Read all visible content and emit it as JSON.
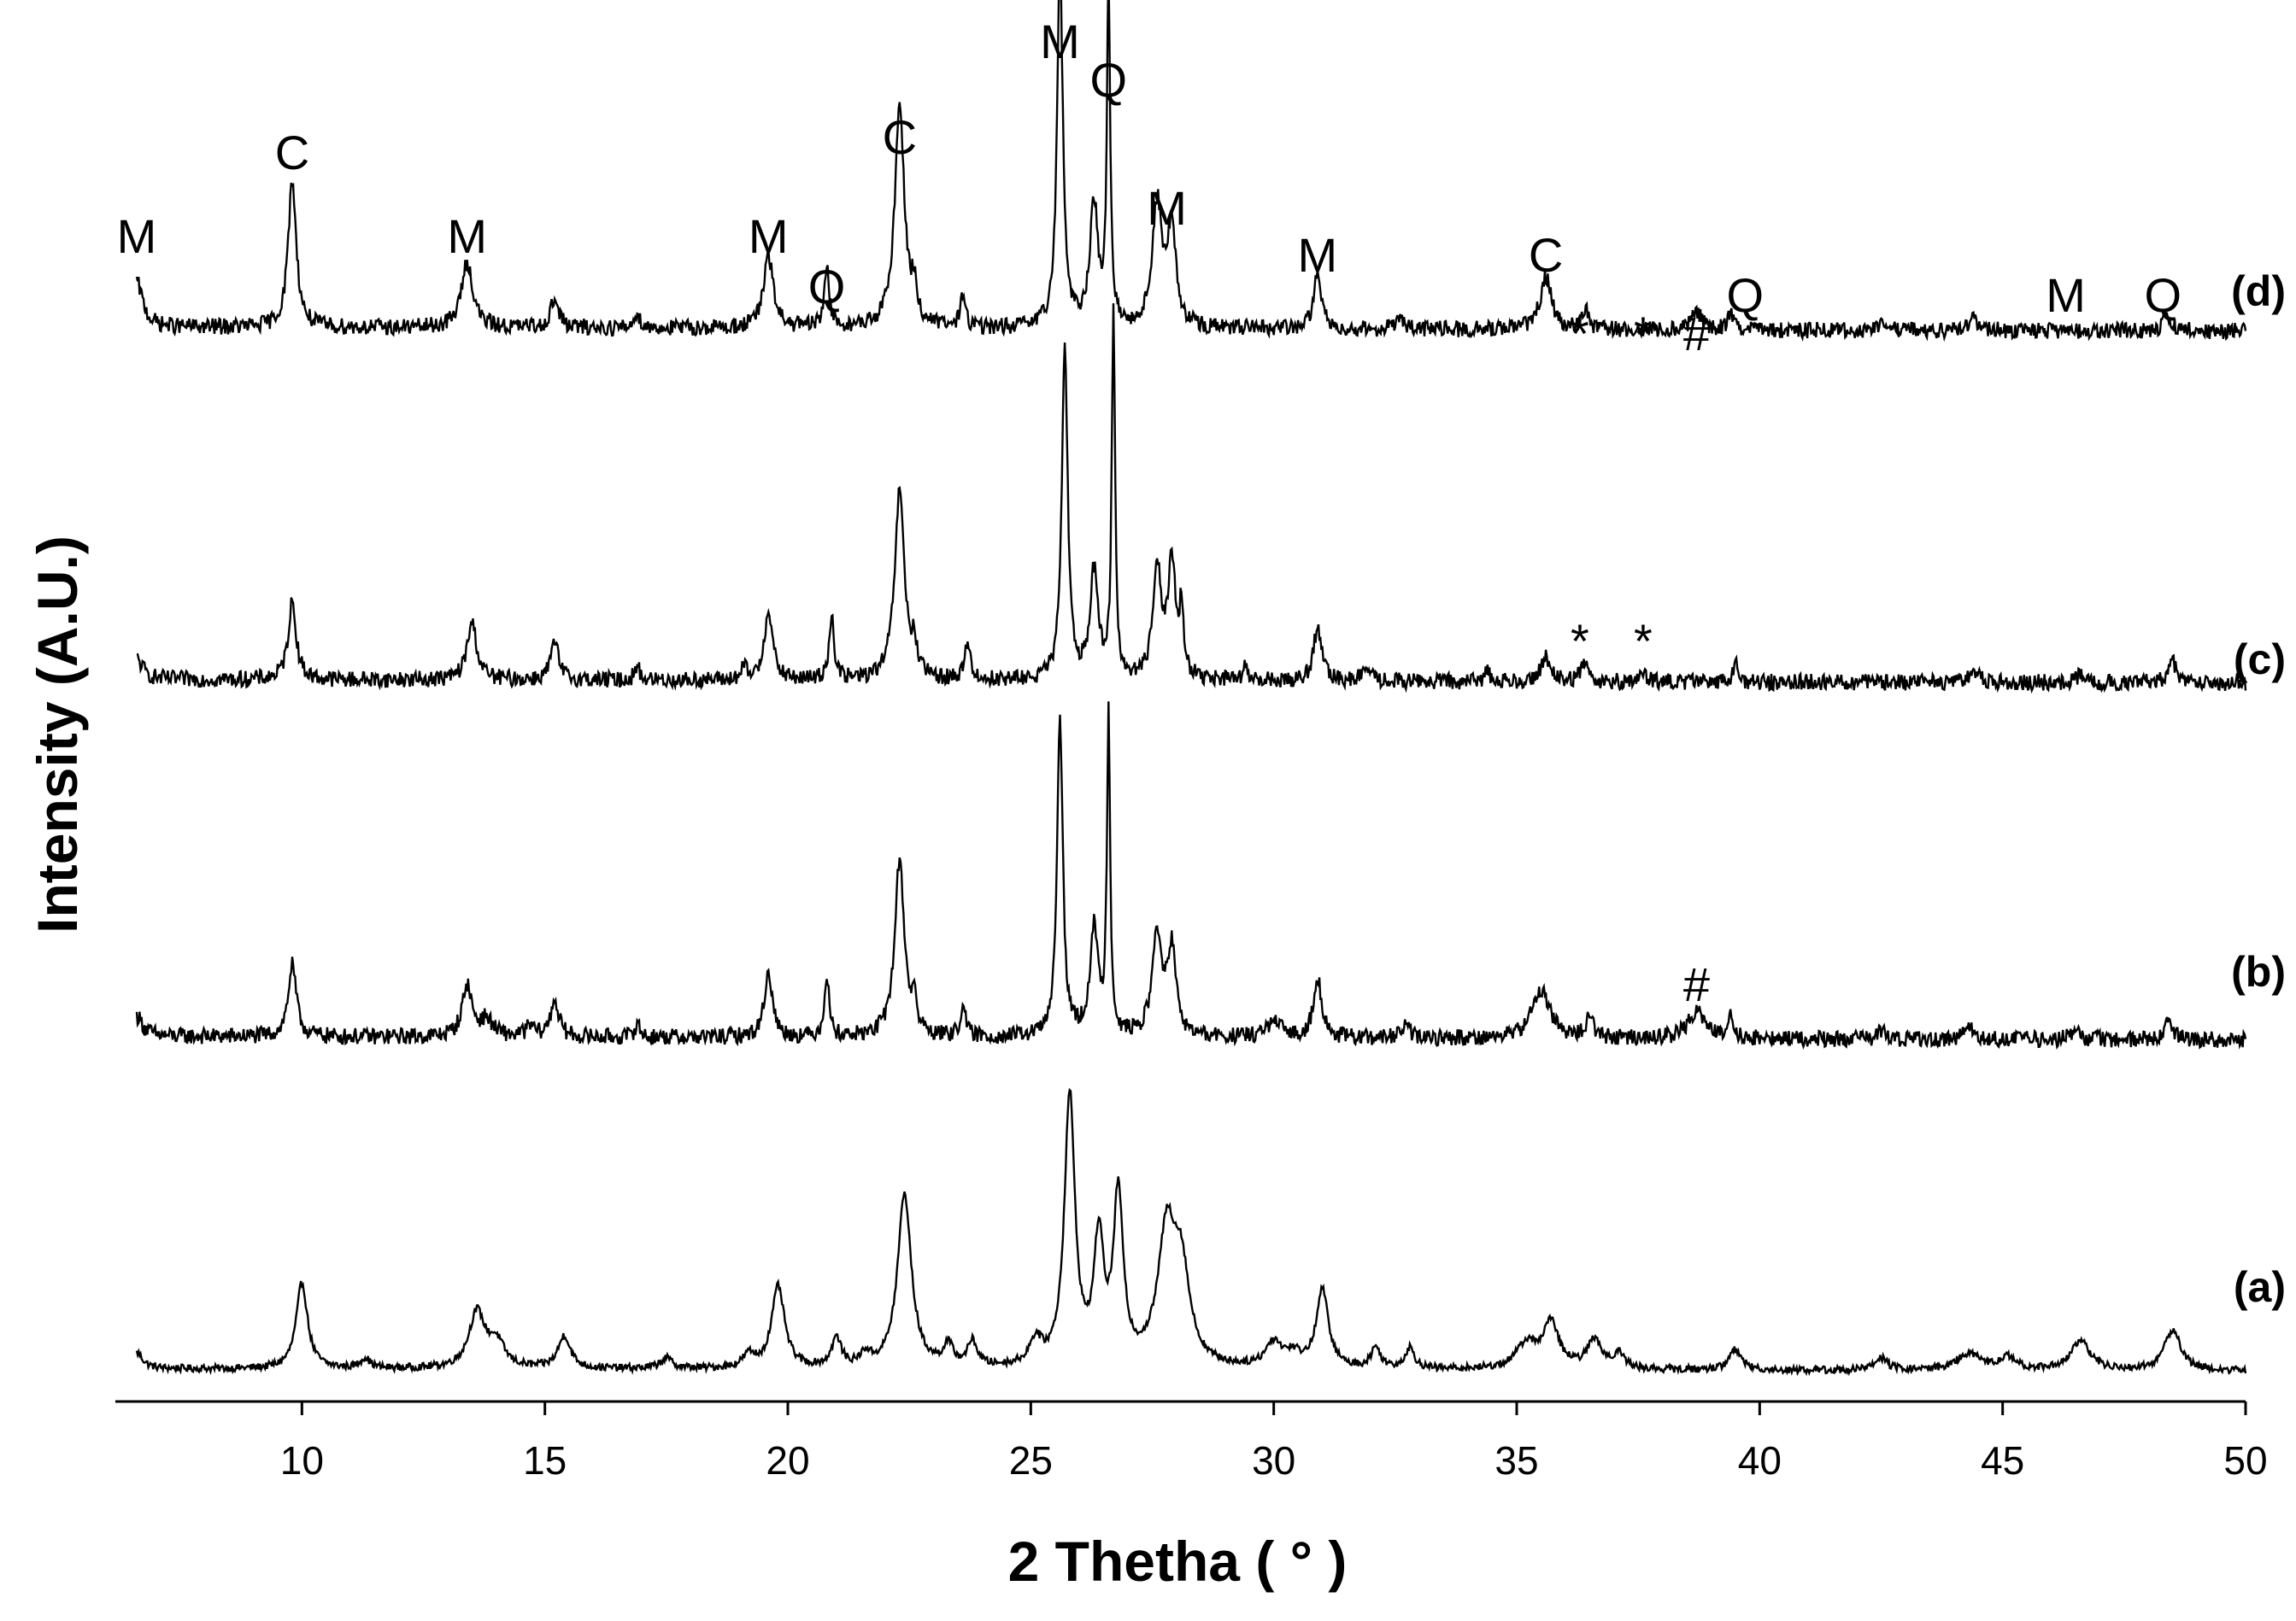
{
  "chart_data": {
    "type": "line",
    "title": "",
    "xlabel": "2 Thetha ( ° )",
    "ylabel": "Intensity (A.U.)",
    "xlim": [
      6,
      50
    ],
    "x_ticks": [
      "10",
      "15",
      "20",
      "25",
      "30",
      "35",
      "40",
      "45",
      "50"
    ],
    "x_tick_values": [
      10,
      15,
      20,
      25,
      30,
      35,
      40,
      45,
      50
    ],
    "y_ticks_shown": false,
    "grid": false,
    "legend": "none",
    "line_color": "#000000",
    "series": [
      {
        "name": "(a)",
        "offset": 0,
        "noise": 0.018,
        "baseline": 0.05,
        "peaks": [
          [
            6.6,
            0.08,
            0.15
          ],
          [
            10.0,
            0.42,
            0.14
          ],
          [
            11.3,
            0.05,
            0.12
          ],
          [
            13.6,
            0.27,
            0.2
          ],
          [
            14.0,
            0.12,
            0.2
          ],
          [
            15.4,
            0.16,
            0.15
          ],
          [
            17.5,
            0.05,
            0.15
          ],
          [
            19.2,
            0.06,
            0.15
          ],
          [
            19.8,
            0.4,
            0.16
          ],
          [
            21.0,
            0.14,
            0.12
          ],
          [
            21.6,
            0.06,
            0.12
          ],
          [
            22.4,
            0.85,
            0.17
          ],
          [
            23.3,
            0.1,
            0.12
          ],
          [
            23.8,
            0.12,
            0.12
          ],
          [
            25.1,
            0.12,
            0.15
          ],
          [
            25.8,
            1.32,
            0.13
          ],
          [
            26.4,
            0.6,
            0.12
          ],
          [
            26.8,
            0.82,
            0.12
          ],
          [
            27.8,
            0.64,
            0.22
          ],
          [
            28.1,
            0.42,
            0.2
          ],
          [
            30.0,
            0.12,
            0.2
          ],
          [
            30.4,
            0.06,
            0.2
          ],
          [
            31.0,
            0.38,
            0.15
          ],
          [
            32.1,
            0.1,
            0.12
          ],
          [
            32.8,
            0.1,
            0.12
          ],
          [
            35.2,
            0.12,
            0.25
          ],
          [
            35.7,
            0.22,
            0.2
          ],
          [
            36.6,
            0.14,
            0.18
          ],
          [
            37.1,
            0.07,
            0.15
          ],
          [
            39.5,
            0.1,
            0.15
          ],
          [
            42.5,
            0.06,
            0.15
          ],
          [
            44.3,
            0.08,
            0.3
          ],
          [
            45.1,
            0.06,
            0.2
          ],
          [
            46.6,
            0.14,
            0.25
          ],
          [
            48.5,
            0.2,
            0.2
          ]
        ]
      },
      {
        "name": "(b)",
        "offset": 1,
        "noise": 0.04,
        "baseline": 0.08,
        "peaks": [
          [
            6.6,
            0.1,
            0.15
          ],
          [
            9.8,
            0.35,
            0.1
          ],
          [
            13.4,
            0.25,
            0.12
          ],
          [
            13.8,
            0.08,
            0.15
          ],
          [
            14.7,
            0.05,
            0.1
          ],
          [
            15.2,
            0.18,
            0.1
          ],
          [
            16.9,
            0.07,
            0.06
          ],
          [
            19.6,
            0.32,
            0.1
          ],
          [
            20.8,
            0.3,
            0.06
          ],
          [
            22.3,
            0.86,
            0.12
          ],
          [
            22.6,
            0.14,
            0.06
          ],
          [
            23.6,
            0.16,
            0.06
          ],
          [
            25.6,
            1.55,
            0.07
          ],
          [
            26.3,
            0.52,
            0.1
          ],
          [
            26.6,
            1.55,
            0.04
          ],
          [
            27.6,
            0.5,
            0.12
          ],
          [
            27.9,
            0.42,
            0.1
          ],
          [
            30.0,
            0.07,
            0.2
          ],
          [
            30.9,
            0.3,
            0.1
          ],
          [
            32.7,
            0.06,
            0.1
          ],
          [
            35.5,
            0.24,
            0.22
          ],
          [
            36.5,
            0.12,
            0.08
          ],
          [
            38.7,
            0.14,
            0.2
          ],
          [
            39.4,
            0.14,
            0.06
          ],
          [
            42.5,
            0.04,
            0.1
          ],
          [
            44.3,
            0.05,
            0.15
          ],
          [
            46.5,
            0.05,
            0.1
          ],
          [
            48.4,
            0.09,
            0.1
          ]
        ]
      },
      {
        "name": "(c)",
        "offset": 2,
        "noise": 0.04,
        "baseline": 0.08,
        "peaks": [
          [
            6.6,
            0.1,
            0.15
          ],
          [
            9.8,
            0.38,
            0.1
          ],
          [
            13.5,
            0.28,
            0.12
          ],
          [
            15.2,
            0.18,
            0.1
          ],
          [
            16.9,
            0.07,
            0.06
          ],
          [
            19.1,
            0.06,
            0.06
          ],
          [
            19.6,
            0.35,
            0.1
          ],
          [
            20.9,
            0.32,
            0.06
          ],
          [
            22.3,
            0.92,
            0.12
          ],
          [
            22.6,
            0.14,
            0.06
          ],
          [
            23.7,
            0.2,
            0.06
          ],
          [
            25.7,
            1.65,
            0.07
          ],
          [
            26.3,
            0.52,
            0.1
          ],
          [
            26.7,
            1.8,
            0.04
          ],
          [
            27.6,
            0.55,
            0.1
          ],
          [
            27.9,
            0.55,
            0.1
          ],
          [
            28.1,
            0.3,
            0.05
          ],
          [
            29.4,
            0.06,
            0.06
          ],
          [
            30.9,
            0.26,
            0.1
          ],
          [
            31.9,
            0.06,
            0.1
          ],
          [
            34.4,
            0.06,
            0.06
          ],
          [
            35.6,
            0.12,
            0.12
          ],
          [
            36.4,
            0.1,
            0.08
          ],
          [
            37.6,
            0.04,
            0.08
          ],
          [
            39.5,
            0.1,
            0.06
          ],
          [
            44.4,
            0.05,
            0.15
          ],
          [
            46.6,
            0.04,
            0.1
          ],
          [
            48.5,
            0.1,
            0.1
          ]
        ]
      },
      {
        "name": "(d)",
        "offset": 3,
        "noise": 0.04,
        "baseline": 0.09,
        "peaks": [
          [
            6.6,
            0.22,
            0.15
          ],
          [
            9.8,
            0.72,
            0.1
          ],
          [
            13.4,
            0.32,
            0.14
          ],
          [
            15.2,
            0.14,
            0.1
          ],
          [
            16.9,
            0.08,
            0.06
          ],
          [
            19.6,
            0.35,
            0.12
          ],
          [
            20.8,
            0.3,
            0.06
          ],
          [
            22.3,
            1.08,
            0.12
          ],
          [
            22.6,
            0.16,
            0.06
          ],
          [
            23.6,
            0.16,
            0.06
          ],
          [
            25.6,
            1.8,
            0.07
          ],
          [
            26.3,
            0.6,
            0.1
          ],
          [
            26.6,
            1.68,
            0.04
          ],
          [
            27.6,
            0.6,
            0.12
          ],
          [
            27.9,
            0.48,
            0.1
          ],
          [
            30.9,
            0.26,
            0.1
          ],
          [
            32.6,
            0.06,
            0.1
          ],
          [
            35.6,
            0.26,
            0.14
          ],
          [
            36.4,
            0.1,
            0.08
          ],
          [
            38.7,
            0.08,
            0.15
          ],
          [
            39.4,
            0.08,
            0.06
          ],
          [
            42.5,
            0.04,
            0.1
          ],
          [
            44.4,
            0.05,
            0.15
          ],
          [
            48.4,
            0.08,
            0.1
          ]
        ]
      }
    ],
    "annotations": [
      {
        "text": "M",
        "x": 6.6,
        "trace": "(d)"
      },
      {
        "text": "C",
        "x": 9.8,
        "trace": "(d)"
      },
      {
        "text": "M",
        "x": 13.4,
        "trace": "(d)"
      },
      {
        "text": "M",
        "x": 19.6,
        "trace": "(d)"
      },
      {
        "text": "Q",
        "x": 20.8,
        "trace": "(d)"
      },
      {
        "text": "C",
        "x": 22.3,
        "trace": "(d)"
      },
      {
        "text": "M",
        "x": 25.6,
        "trace": "(d)"
      },
      {
        "text": "Q",
        "x": 26.6,
        "trace": "(d)"
      },
      {
        "text": "M",
        "x": 27.8,
        "trace": "(d)"
      },
      {
        "text": "M",
        "x": 30.9,
        "trace": "(d)"
      },
      {
        "text": "C",
        "x": 35.6,
        "trace": "(d)"
      },
      {
        "text": "*",
        "x": 36.3,
        "trace": "(d)"
      },
      {
        "text": "*",
        "x": 37.6,
        "trace": "(d)"
      },
      {
        "text": "#",
        "x": 38.7,
        "trace": "(d)"
      },
      {
        "text": "Q",
        "x": 39.7,
        "trace": "(d)"
      },
      {
        "text": "M",
        "x": 46.3,
        "trace": "(d)"
      },
      {
        "text": "Q",
        "x": 48.3,
        "trace": "(d)"
      },
      {
        "text": "*",
        "x": 36.3,
        "trace": "(c)"
      },
      {
        "text": "*",
        "x": 37.6,
        "trace": "(c)"
      },
      {
        "text": "#",
        "x": 38.7,
        "trace": "(b)"
      }
    ]
  }
}
